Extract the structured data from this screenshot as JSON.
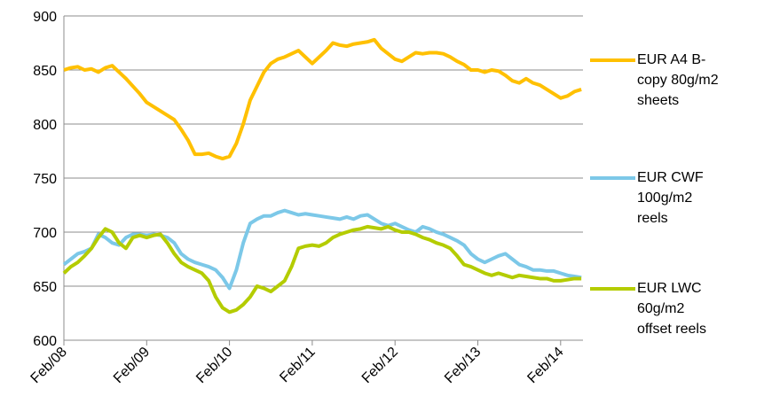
{
  "chart_data": {
    "type": "line",
    "categories": [
      "Feb/08",
      null,
      null,
      null,
      null,
      null,
      null,
      null,
      null,
      null,
      null,
      null,
      "Feb/09",
      null,
      null,
      null,
      null,
      null,
      null,
      null,
      null,
      null,
      null,
      null,
      "Feb/10",
      null,
      null,
      null,
      null,
      null,
      null,
      null,
      null,
      null,
      null,
      null,
      "Feb/11",
      null,
      null,
      null,
      null,
      null,
      null,
      null,
      null,
      null,
      null,
      null,
      "Feb/12",
      null,
      null,
      null,
      null,
      null,
      null,
      null,
      null,
      null,
      null,
      null,
      "Feb/13",
      null,
      null,
      null,
      null,
      null,
      null,
      null,
      null,
      null,
      null,
      null,
      "Feb/14",
      null,
      null,
      null
    ],
    "series": [
      {
        "name": "EUR A4 B-copy 80g/m2 sheets",
        "color": "#FFC000",
        "values": [
          850,
          852,
          853,
          850,
          851,
          848,
          852,
          854,
          848,
          842,
          835,
          828,
          820,
          816,
          812,
          808,
          804,
          795,
          785,
          772,
          772,
          773,
          770,
          768,
          770,
          782,
          800,
          822,
          835,
          848,
          856,
          860,
          862,
          865,
          868,
          862,
          856,
          862,
          868,
          875,
          873,
          872,
          874,
          875,
          876,
          878,
          870,
          865,
          860,
          858,
          862,
          866,
          865,
          866,
          866,
          865,
          862,
          858,
          855,
          850,
          850,
          848,
          850,
          849,
          845,
          840,
          838,
          842,
          838,
          836,
          832,
          828,
          824,
          826,
          830,
          832
        ]
      },
      {
        "name": "EUR CWF 100g/m2 reels",
        "color": "#7CC8E8",
        "values": [
          670,
          675,
          680,
          682,
          685,
          698,
          695,
          690,
          688,
          695,
          698,
          698,
          697,
          698,
          697,
          695,
          690,
          680,
          675,
          672,
          670,
          668,
          665,
          658,
          648,
          665,
          690,
          708,
          712,
          715,
          715,
          718,
          720,
          718,
          716,
          717,
          716,
          715,
          714,
          713,
          712,
          714,
          712,
          715,
          716,
          712,
          708,
          706,
          708,
          705,
          702,
          700,
          705,
          703,
          700,
          698,
          695,
          692,
          688,
          680,
          675,
          672,
          675,
          678,
          680,
          675,
          670,
          668,
          665,
          665,
          664,
          664,
          662,
          660,
          659,
          658
        ]
      },
      {
        "name": "EUR LWC 60g/m2 offset reels",
        "color": "#B4CC00",
        "values": [
          662,
          668,
          672,
          678,
          685,
          695,
          703,
          700,
          690,
          685,
          695,
          697,
          695,
          697,
          698,
          690,
          680,
          672,
          668,
          665,
          662,
          655,
          640,
          630,
          626,
          628,
          633,
          640,
          650,
          648,
          645,
          650,
          655,
          668,
          685,
          687,
          688,
          687,
          690,
          695,
          698,
          700,
          702,
          703,
          705,
          704,
          703,
          705,
          702,
          700,
          700,
          698,
          695,
          693,
          690,
          688,
          685,
          678,
          670,
          668,
          665,
          662,
          660,
          662,
          660,
          658,
          660,
          659,
          658,
          657,
          657,
          655,
          655,
          656,
          657,
          657
        ]
      }
    ],
    "ylim": [
      600,
      900
    ],
    "yticks": [
      600,
      650,
      700,
      750,
      800,
      850,
      900
    ],
    "grid": true,
    "legend": "right"
  }
}
